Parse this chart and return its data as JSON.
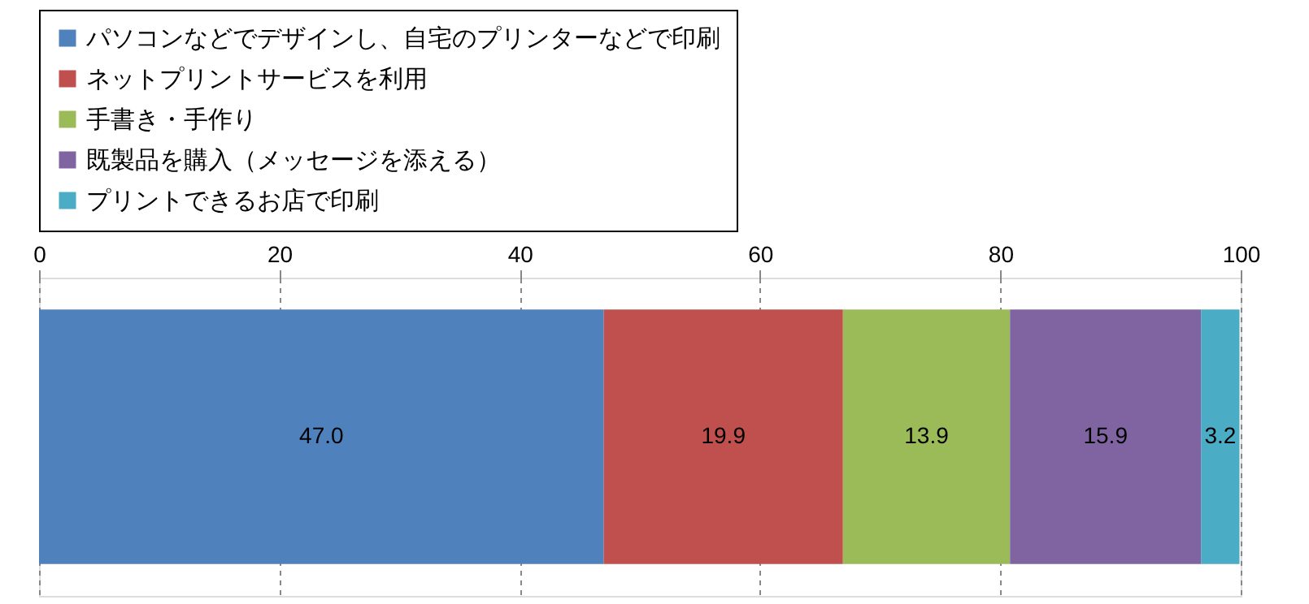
{
  "chart_data": {
    "type": "bar",
    "orientation": "horizontal",
    "stacked": true,
    "categories": [
      null
    ],
    "series": [
      {
        "name": "パソコンなどでデザインし、自宅のプリンターなどで印刷",
        "color": "#4f81bd",
        "values": [
          47.0
        ],
        "value_labels": [
          "47.0"
        ]
      },
      {
        "name": "ネットプリントサービスを利用",
        "color": "#c0504d",
        "values": [
          19.9
        ],
        "value_labels": [
          "19.9"
        ]
      },
      {
        "name": "手書き・手作り",
        "color": "#9bbb59",
        "values": [
          13.9
        ],
        "value_labels": [
          "13.9"
        ]
      },
      {
        "name": "既製品を購入（メッセージを添える）",
        "color": "#8064a2",
        "values": [
          15.9
        ],
        "value_labels": [
          "15.9"
        ]
      },
      {
        "name": "プリントできるお店で印刷",
        "color": "#4bacc6",
        "values": [
          3.2
        ],
        "value_labels": [
          "3.2"
        ]
      }
    ],
    "xlim": [
      0,
      100
    ],
    "xticks": [
      0,
      20,
      40,
      60,
      80,
      100
    ],
    "grid": "x",
    "legend": "top",
    "tick_labels": "x"
  }
}
